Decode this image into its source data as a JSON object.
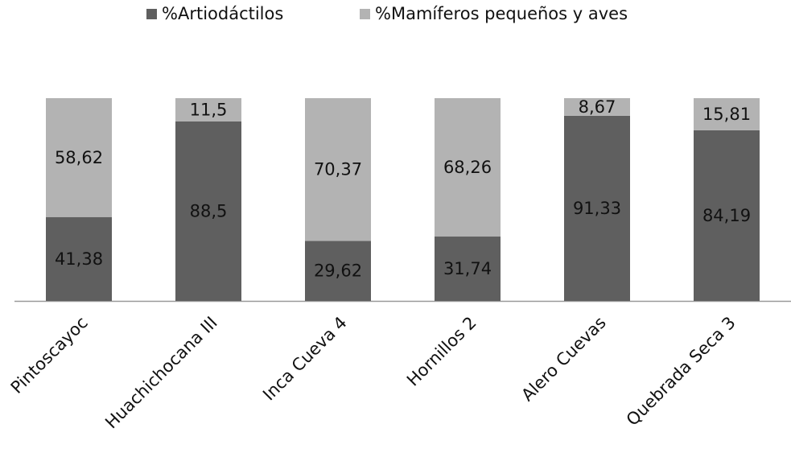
{
  "chart_data": {
    "type": "stacked_bar",
    "categories": [
      "Pintoscayoc",
      "Huachichocana III",
      "Inca Cueva 4",
      "Hornillos 2",
      "Alero Cuevas",
      "Quebrada Seca 3"
    ],
    "series": [
      {
        "name": "%Artiodáctilos",
        "color": "#5f5f5f",
        "values": [
          41.38,
          88.5,
          29.62,
          31.74,
          91.33,
          84.19
        ],
        "value_labels": [
          "41,38",
          "88,5",
          "29,62",
          "31,74",
          "91,33",
          "84,19"
        ]
      },
      {
        "name": "%Mamíferos pequeños y aves",
        "color": "#b3b3b3",
        "values": [
          58.62,
          11.5,
          70.37,
          68.26,
          8.67,
          15.81
        ],
        "value_labels": [
          "58,62",
          "11,5",
          "70,37",
          "68,26",
          "8,67",
          "15,81"
        ]
      }
    ],
    "ylim": [
      0,
      100
    ],
    "legend": "top"
  }
}
